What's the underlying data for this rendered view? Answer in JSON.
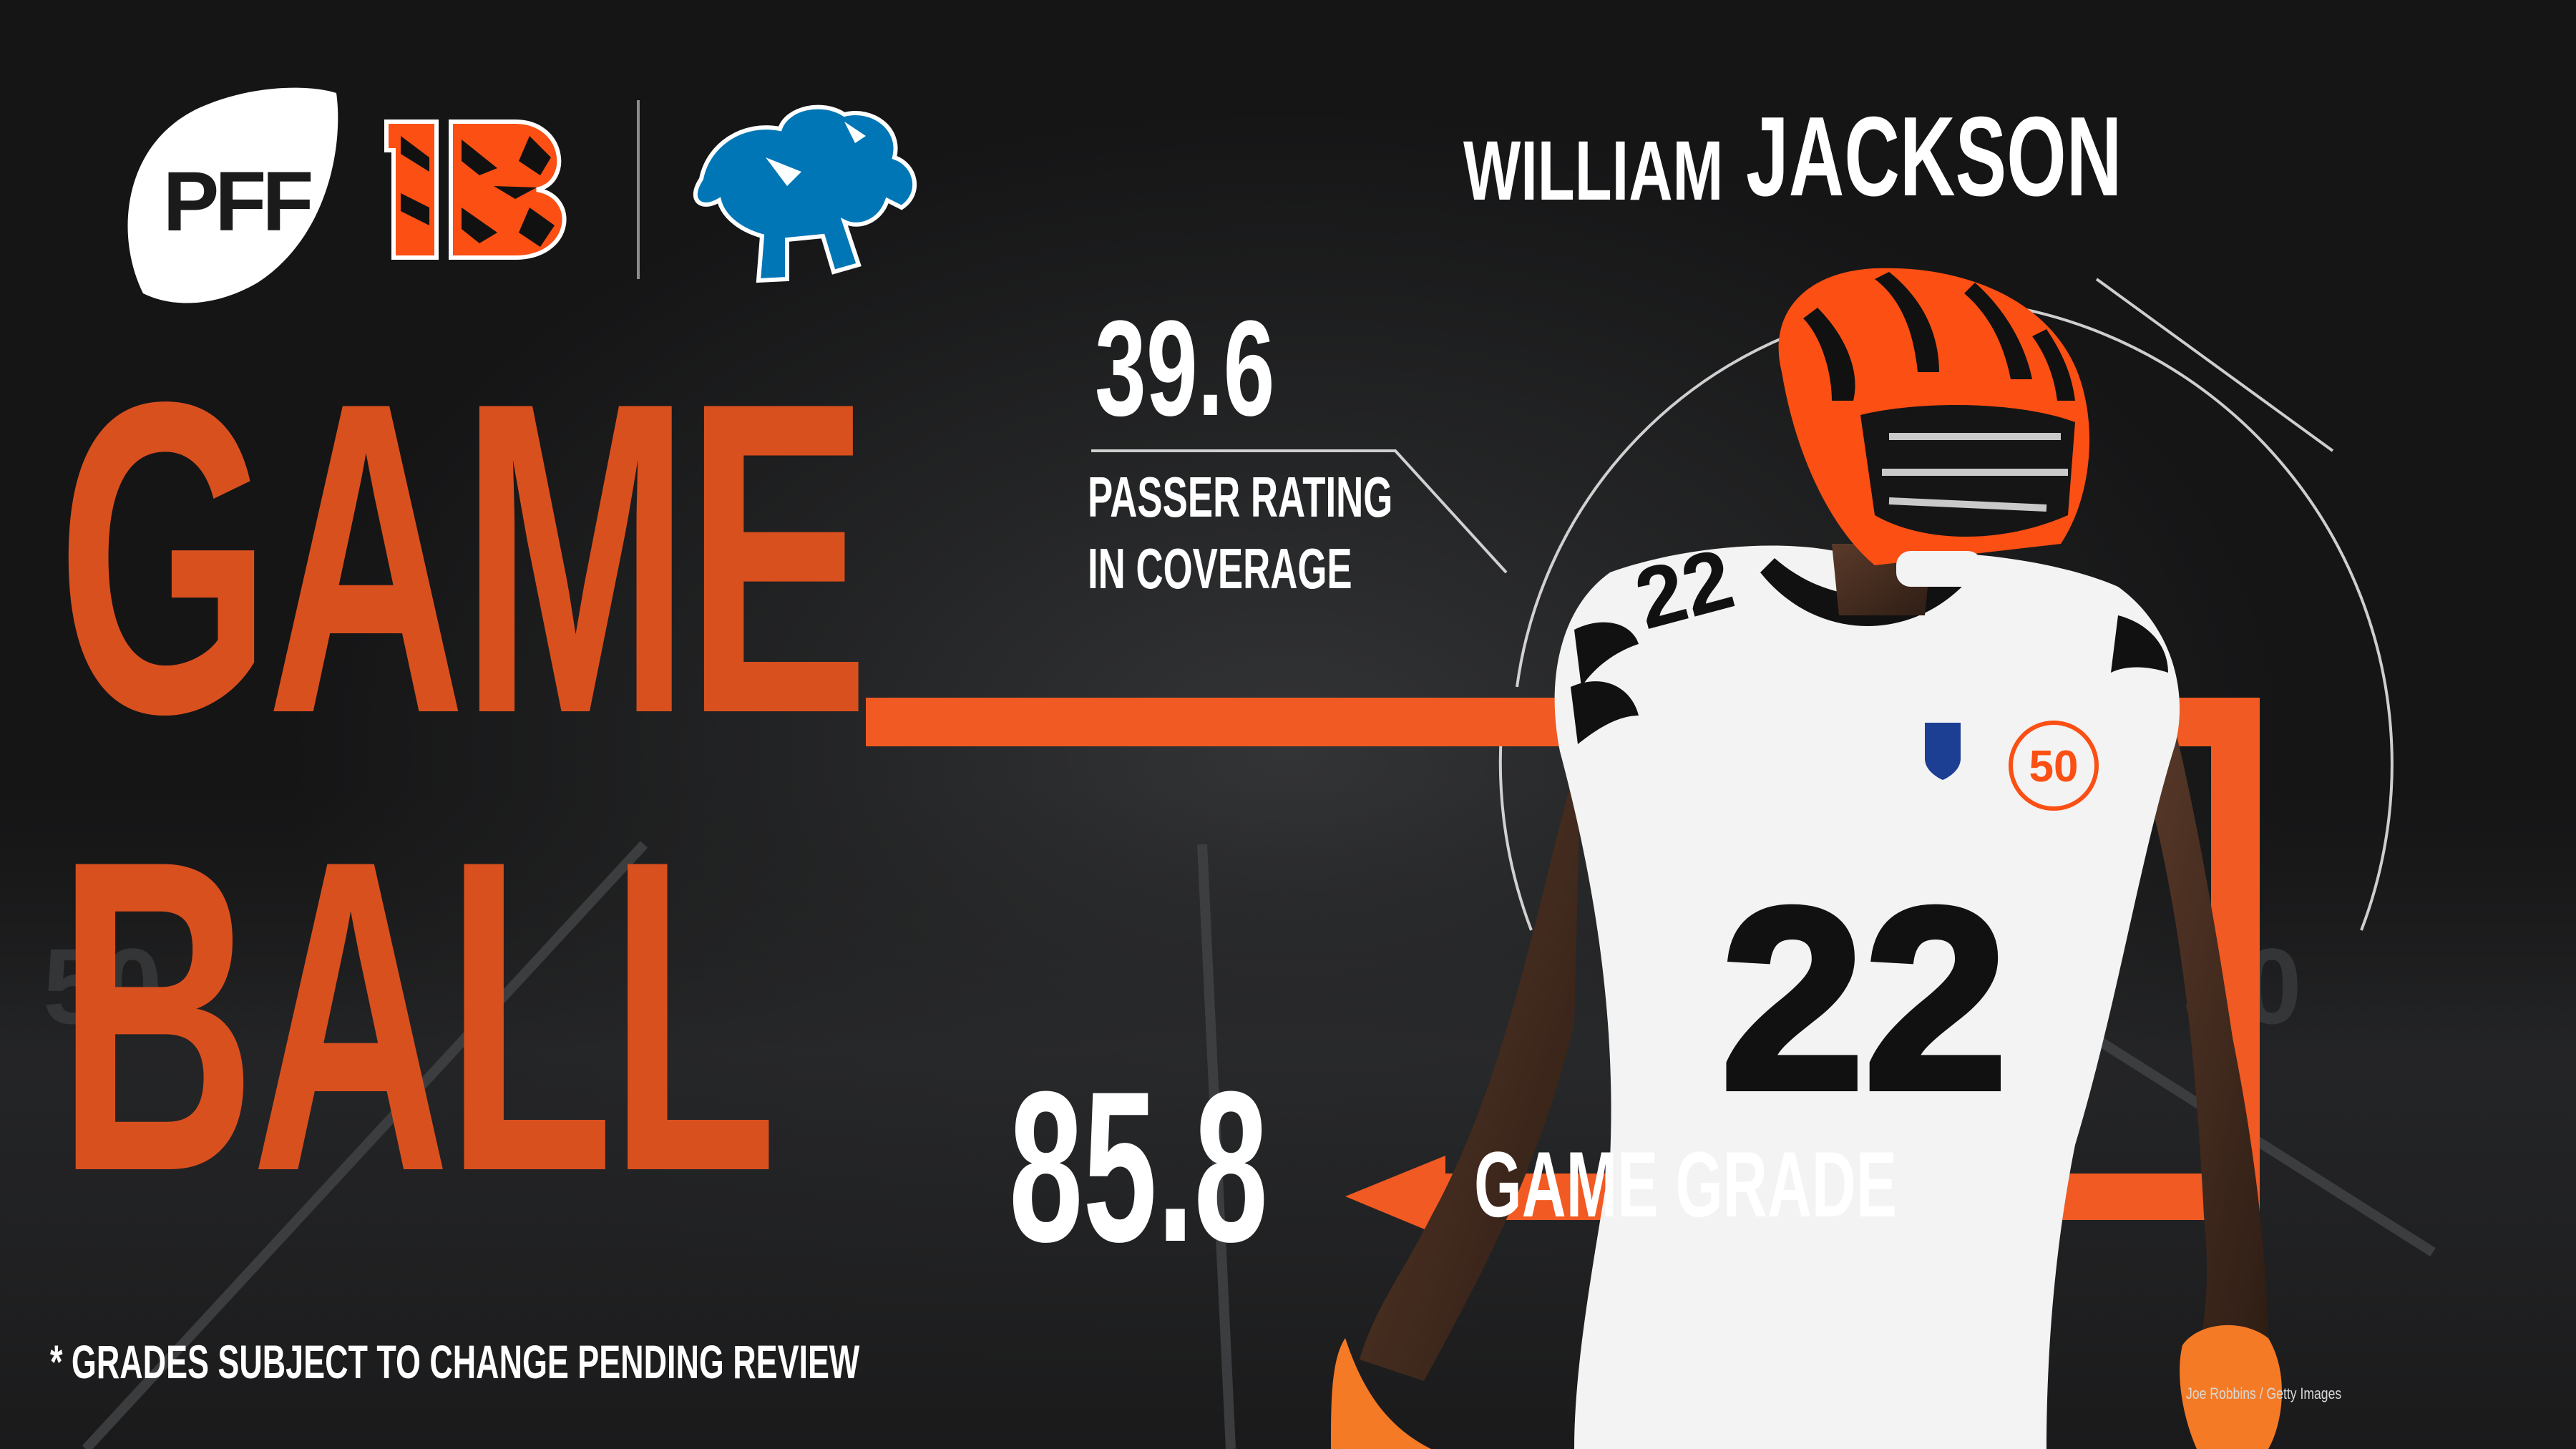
{
  "branding": {
    "pff_logo_text": "PFF",
    "team_logos": [
      "bengals-logo",
      "lions-logo"
    ]
  },
  "headline": {
    "line1": "GAME",
    "line2": "BALL"
  },
  "player": {
    "first_name": "WILLIAM",
    "last_name": "JACKSON",
    "jersey_number": "22"
  },
  "stats": [
    {
      "value": "39.6",
      "label_line1": "PASSER RATING",
      "label_line2": "IN COVERAGE"
    },
    {
      "value": "85.8",
      "label": "GAME GRADE"
    }
  ],
  "disclaimer": "* GRADES SUBJECT TO CHANGE PENDING REVIEW",
  "photo_credit": "Joe Robbins / Getty Images",
  "colors": {
    "accent_orange": "#d9501f",
    "bright_orange": "#f15a22",
    "lions_blue": "#0076b6",
    "background": "#1b1b1c",
    "text": "#ffffff"
  }
}
